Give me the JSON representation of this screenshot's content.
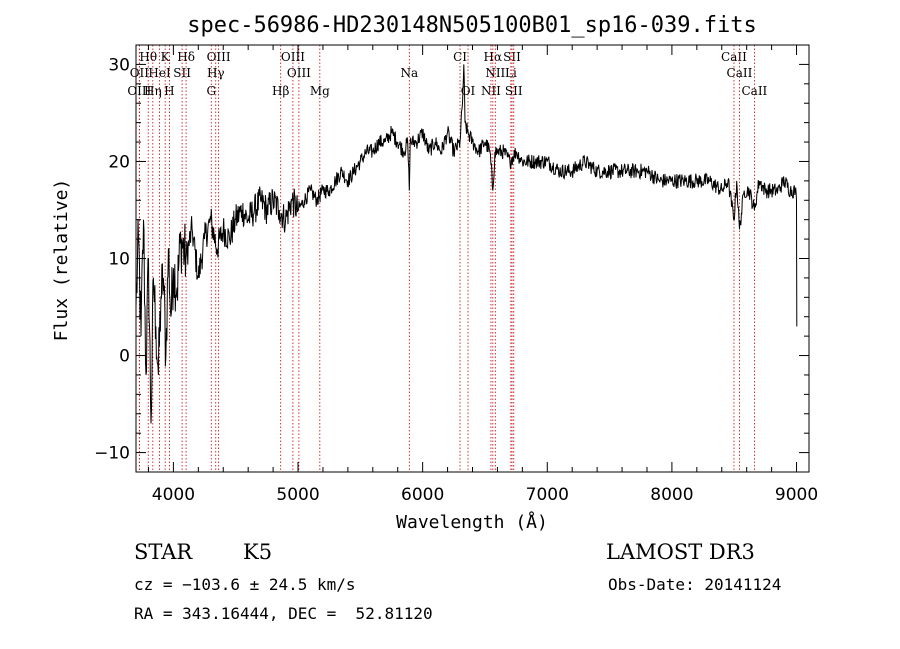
{
  "chart_data": {
    "type": "line",
    "title": "spec-56986-HD230148N505100B01_sp16-039.fits",
    "xlabel": "Wavelength (Å)",
    "ylabel": "Flux (relative)",
    "xlim": [
      3700,
      9100
    ],
    "ylim": [
      -12,
      32
    ],
    "x_ticks": [
      4000,
      5000,
      6000,
      7000,
      8000,
      9000
    ],
    "y_ticks": [
      -10,
      0,
      10,
      20,
      30
    ],
    "grid": false,
    "series": [
      {
        "x": [
          3700,
          3720,
          3740,
          3760,
          3780,
          3800,
          3820,
          3840,
          3860,
          3880,
          3900,
          3920,
          3940,
          3960,
          3980,
          4000,
          4030,
          4060,
          4100,
          4150,
          4200,
          4250,
          4300,
          4350,
          4400,
          4450,
          4500,
          4550,
          4600,
          4650,
          4700,
          4750,
          4800,
          4850,
          4900,
          4950,
          5000,
          5050,
          5100,
          5150,
          5200,
          5250,
          5300,
          5350,
          5400,
          5450,
          5500,
          5550,
          5600,
          5650,
          5700,
          5750,
          5800,
          5850,
          5880,
          5893,
          5900,
          5950,
          6000,
          6050,
          6100,
          6150,
          6200,
          6250,
          6300,
          6320,
          6330,
          6340,
          6360,
          6400,
          6450,
          6500,
          6540,
          6563,
          6580,
          6600,
          6650,
          6700,
          6750,
          6800,
          6900,
          7000,
          7100,
          7200,
          7300,
          7400,
          7500,
          7600,
          7700,
          7800,
          7900,
          8000,
          8100,
          8200,
          8300,
          8400,
          8450,
          8498,
          8520,
          8542,
          8580,
          8620,
          8662,
          8700,
          8750,
          8800,
          8850,
          8900,
          8950,
          8990,
          9000,
          9002
        ],
        "y": [
          5,
          12,
          2,
          14,
          -2,
          10,
          -7,
          8,
          3,
          -2,
          6,
          8,
          0,
          11,
          4,
          9,
          7,
          12,
          10,
          13,
          8,
          12,
          14,
          11,
          13,
          12,
          14,
          15,
          14,
          15,
          16,
          15,
          16,
          15,
          14,
          16,
          15,
          16,
          17,
          16,
          17,
          17,
          18,
          19,
          18,
          19,
          20,
          21,
          21,
          22,
          22,
          23,
          22,
          21,
          22,
          17,
          22,
          22,
          23,
          21,
          22,
          21,
          23,
          21,
          22,
          26,
          30,
          24,
          23,
          22,
          21,
          22,
          21,
          17,
          21,
          21,
          21,
          20,
          21,
          20,
          20,
          20,
          19,
          19,
          20,
          19,
          19,
          19,
          19,
          19,
          18,
          18,
          18,
          18,
          18,
          17,
          18,
          14,
          18,
          13,
          17,
          17,
          15,
          18,
          17,
          17,
          17,
          18,
          17,
          17,
          16,
          3
        ]
      }
    ],
    "spectral_lines": [
      {
        "label": "Hθ",
        "wavelength": 3798,
        "row": 1
      },
      {
        "label": "K",
        "wavelength": 3934,
        "row": 1
      },
      {
        "label": "Hδ",
        "wavelength": 4102,
        "row": 1
      },
      {
        "label": "OIII",
        "wavelength": 4363,
        "row": 1
      },
      {
        "label": "OIII",
        "wavelength": 4959,
        "row": 1
      },
      {
        "label": "CI",
        "wavelength": 6300,
        "row": 1
      },
      {
        "label": "Hα",
        "wavelength": 6563,
        "row": 1
      },
      {
        "label": "SII",
        "wavelength": 6717,
        "row": 1
      },
      {
        "label": "CaII",
        "wavelength": 8498,
        "row": 1
      },
      {
        "label": "OII",
        "wavelength": 3727,
        "row": 2
      },
      {
        "label": "HeI",
        "wavelength": 3889,
        "row": 2
      },
      {
        "label": "SII",
        "wavelength": 4070,
        "row": 2
      },
      {
        "label": "Hγ",
        "wavelength": 4340,
        "row": 2
      },
      {
        "label": "OIII",
        "wavelength": 5007,
        "row": 2
      },
      {
        "label": "Na",
        "wavelength": 5893,
        "row": 2
      },
      {
        "label": "NII",
        "wavelength": 6583,
        "row": 2
      },
      {
        "label": "Li",
        "wavelength": 6708,
        "row": 2
      },
      {
        "label": "CaII",
        "wavelength": 8542,
        "row": 2
      },
      {
        "label": "OIII",
        "wavelength": 3727,
        "row": 3
      },
      {
        "label": "Hη",
        "wavelength": 3835,
        "row": 3
      },
      {
        "label": "H",
        "wavelength": 3968,
        "row": 3
      },
      {
        "label": "G",
        "wavelength": 4304,
        "row": 3
      },
      {
        "label": "Hβ",
        "wavelength": 4861,
        "row": 3
      },
      {
        "label": "Mg",
        "wavelength": 5175,
        "row": 3
      },
      {
        "label": "OI",
        "wavelength": 6364,
        "row": 3
      },
      {
        "label": "NII",
        "wavelength": 6548,
        "row": 3
      },
      {
        "label": "SII",
        "wavelength": 6731,
        "row": 3
      },
      {
        "label": "CaII",
        "wavelength": 8662,
        "row": 3
      }
    ]
  },
  "info": {
    "class": "STAR",
    "subclass": "K5",
    "survey": "LAMOST DR3",
    "cz": "cz = −103.6 ± 24.5 km/s",
    "obs_date": "Obs-Date: 20141124",
    "coords": "RA = 343.16444, DEC =  52.81120"
  },
  "colors": {
    "spectrum": "#000000",
    "line_markers": "#cc0000"
  }
}
